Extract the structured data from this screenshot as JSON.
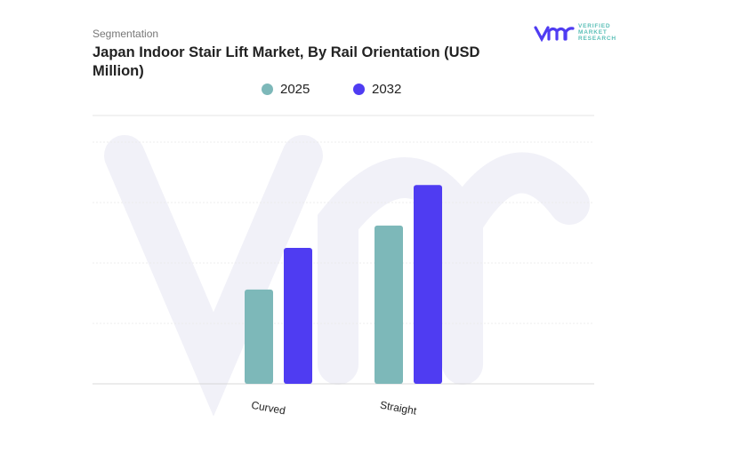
{
  "header": {
    "section": "Segmentation",
    "title": "Japan Indoor Stair Lift Market, By Rail Orientation (USD Million)"
  },
  "logo": {
    "mark": "vmr",
    "lines": [
      "VERIFIED",
      "MARKET",
      "RESEARCH"
    ]
  },
  "chart_data": {
    "type": "bar",
    "title": "Japan Indoor Stair Lift Market, By Rail Orientation (USD Million)",
    "categories": [
      "Curved",
      "Straight"
    ],
    "series": [
      {
        "name": "2025",
        "color": "#7db8b9",
        "values": [
          1.56,
          2.62
        ]
      },
      {
        "name": "2032",
        "color": "#4f3cf2",
        "values": [
          2.25,
          3.29
        ]
      }
    ],
    "ylim": [
      0,
      4
    ],
    "grid": true,
    "legend": "top-center",
    "xlabel": "",
    "ylabel": "",
    "note": "values are relative (no axis scale shown)"
  }
}
